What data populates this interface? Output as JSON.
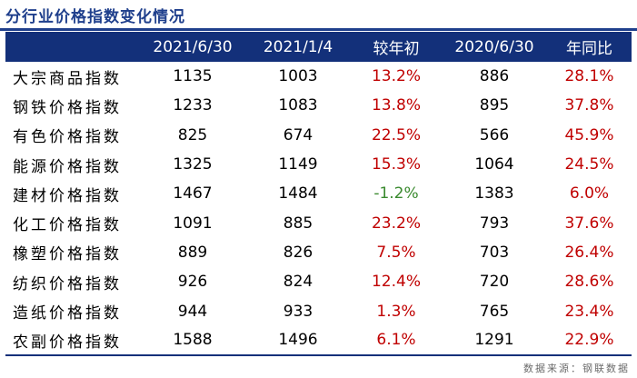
{
  "title": "分行业价格指数变化情况",
  "columns": [
    "",
    "2021/6/30",
    "2021/1/4",
    "较年初",
    "2020/6/30",
    "年同比"
  ],
  "rows": [
    {
      "name": "大宗商品指数",
      "v1": "1135",
      "v2": "1003",
      "ytd": "13.2%",
      "ytd_sign": "pos",
      "v3": "886",
      "yoy": "28.1%",
      "yoy_sign": "pos"
    },
    {
      "name": "钢铁价格指数",
      "v1": "1233",
      "v2": "1083",
      "ytd": "13.8%",
      "ytd_sign": "pos",
      "v3": "895",
      "yoy": "37.8%",
      "yoy_sign": "pos"
    },
    {
      "name": "有色价格指数",
      "v1": "825",
      "v2": "674",
      "ytd": "22.5%",
      "ytd_sign": "pos",
      "v3": "566",
      "yoy": "45.9%",
      "yoy_sign": "pos"
    },
    {
      "name": "能源价格指数",
      "v1": "1325",
      "v2": "1149",
      "ytd": "15.3%",
      "ytd_sign": "pos",
      "v3": "1064",
      "yoy": "24.5%",
      "yoy_sign": "pos"
    },
    {
      "name": "建材价格指数",
      "v1": "1467",
      "v2": "1484",
      "ytd": "-1.2%",
      "ytd_sign": "neg",
      "v3": "1383",
      "yoy": "6.0%",
      "yoy_sign": "pos"
    },
    {
      "name": "化工价格指数",
      "v1": "1091",
      "v2": "885",
      "ytd": "23.2%",
      "ytd_sign": "pos",
      "v3": "793",
      "yoy": "37.6%",
      "yoy_sign": "pos"
    },
    {
      "name": "橡塑价格指数",
      "v1": "889",
      "v2": "826",
      "ytd": "7.5%",
      "ytd_sign": "pos",
      "v3": "703",
      "yoy": "26.4%",
      "yoy_sign": "pos"
    },
    {
      "name": "纺织价格指数",
      "v1": "926",
      "v2": "824",
      "ytd": "12.4%",
      "ytd_sign": "pos",
      "v3": "720",
      "yoy": "28.6%",
      "yoy_sign": "pos"
    },
    {
      "name": "造纸价格指数",
      "v1": "944",
      "v2": "933",
      "ytd": "1.3%",
      "ytd_sign": "pos",
      "v3": "765",
      "yoy": "23.4%",
      "yoy_sign": "pos"
    },
    {
      "name": "农副价格指数",
      "v1": "1588",
      "v2": "1496",
      "ytd": "6.1%",
      "ytd_sign": "pos",
      "v3": "1291",
      "yoy": "22.9%",
      "yoy_sign": "pos"
    }
  ],
  "source": "数据来源：钢联数据",
  "colors": {
    "header_bg": "#13307a",
    "title": "#1f3f8c",
    "positive": "#c00000",
    "negative": "#3a8a2f"
  }
}
